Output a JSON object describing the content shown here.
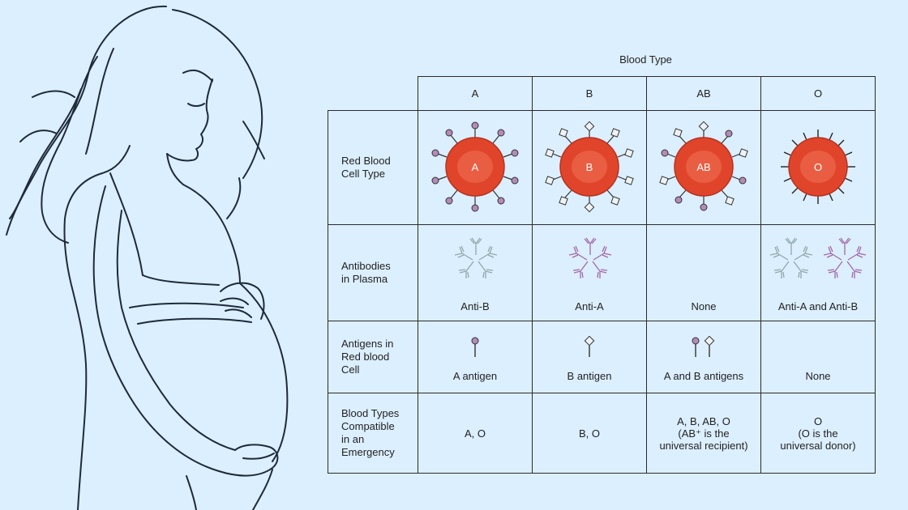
{
  "title": "Blood Type",
  "columns": [
    "A",
    "B",
    "AB",
    "O"
  ],
  "rows": {
    "rbc": {
      "header": "Red Blood\nCell Type",
      "labels": [
        "A",
        "B",
        "AB",
        "O"
      ]
    },
    "antibodies": {
      "header": "Antibodies\nin Plasma",
      "values": [
        "Anti-B",
        "Anti-A",
        "None",
        "Anti-A and Anti-B"
      ]
    },
    "antigens": {
      "header": "Antigens in\nRed blood\nCell",
      "values": [
        "A antigen",
        "B antigen",
        "A and B antigens",
        "None"
      ]
    },
    "compatible": {
      "header": "Blood Types\nCompatible\nin an\nEmergency",
      "values": [
        "A, O",
        "B, O",
        "A, B, AB, O\n(AB⁺ is the\nuniversal recipient)",
        "O\n(O is the\nuniversal donor)"
      ]
    }
  },
  "colors": {
    "background": "#dcefff",
    "cell_red": "#e0452b",
    "antigen_a": "#b48ab8",
    "antibody_b_color": "#8fa8a8",
    "antibody_a_color": "#a368a8"
  }
}
